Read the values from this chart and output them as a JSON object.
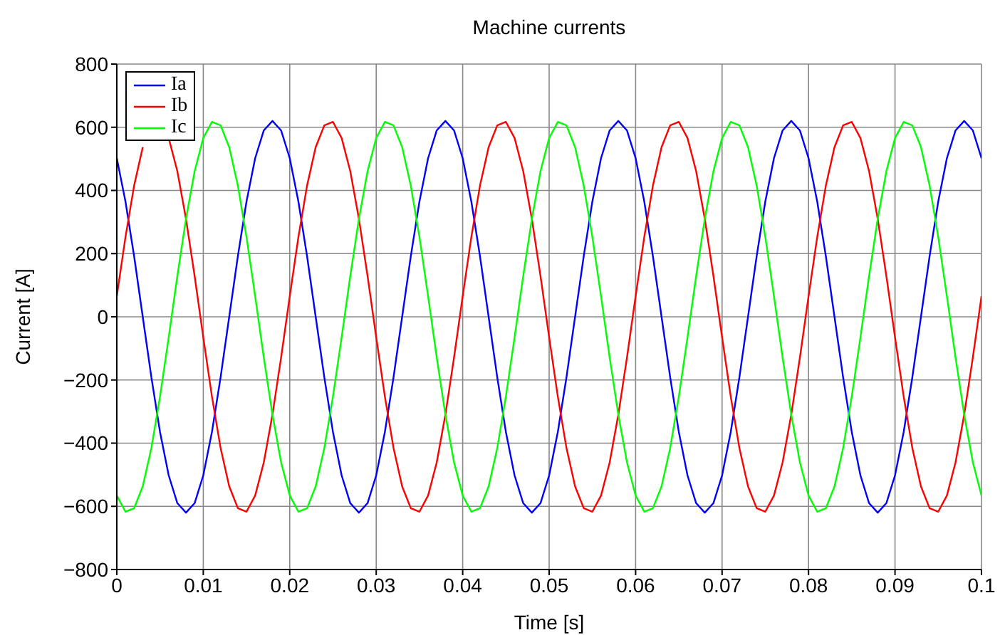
{
  "chart_data": {
    "type": "line",
    "title": "Machine currents",
    "xlabel": "Time [s]",
    "ylabel": "Current [A]",
    "x": [
      0,
      0.001,
      0.002,
      0.003,
      0.004,
      0.005,
      0.006,
      0.007,
      0.008,
      0.009,
      0.01,
      0.011,
      0.012,
      0.013,
      0.014,
      0.015,
      0.016,
      0.017,
      0.018,
      0.019,
      0.02,
      0.021,
      0.022,
      0.023,
      0.024,
      0.025,
      0.026,
      0.027,
      0.028,
      0.029,
      0.03,
      0.031,
      0.032,
      0.033,
      0.034,
      0.035,
      0.036,
      0.037,
      0.038,
      0.039,
      0.04,
      0.041,
      0.042,
      0.043,
      0.044,
      0.045,
      0.046,
      0.047,
      0.048,
      0.049,
      0.05,
      0.051,
      0.052,
      0.053,
      0.054,
      0.055,
      0.056,
      0.057,
      0.058,
      0.059,
      0.06,
      0.061,
      0.062,
      0.063,
      0.064,
      0.065,
      0.066,
      0.067,
      0.068,
      0.069,
      0.07,
      0.071,
      0.072,
      0.073,
      0.074,
      0.075,
      0.076,
      0.077,
      0.078,
      0.079,
      0.08,
      0.081,
      0.082,
      0.083,
      0.084,
      0.085,
      0.086,
      0.087,
      0.088,
      0.089,
      0.09,
      0.091,
      0.092,
      0.093,
      0.094,
      0.095,
      0.096,
      0.097,
      0.098,
      0.099,
      0.1
    ],
    "series": [
      {
        "name": "Ia",
        "color": "#0000ff",
        "values": [
          502,
          365,
          192,
          0,
          -192,
          -365,
          -502,
          -590,
          -620,
          -590,
          -502,
          -365,
          -192,
          0,
          192,
          365,
          502,
          590,
          620,
          590,
          502,
          365,
          192,
          0,
          -192,
          -365,
          -502,
          -590,
          -620,
          -590,
          -502,
          -365,
          -192,
          0,
          192,
          365,
          502,
          590,
          620,
          590,
          502,
          365,
          192,
          0,
          -192,
          -365,
          -502,
          -590,
          -620,
          -590,
          -502,
          -365,
          -192,
          0,
          192,
          365,
          502,
          590,
          620,
          590,
          502,
          365,
          192,
          0,
          -192,
          -365,
          -502,
          -590,
          -620,
          -590,
          -502,
          -365,
          -192,
          0,
          192,
          365,
          502,
          590,
          620,
          590,
          502,
          365,
          192,
          0,
          -192,
          -365,
          -502,
          -590,
          -620,
          -590,
          -502,
          -365,
          -192,
          0,
          192,
          365,
          502,
          590,
          620,
          590,
          502
        ]
      },
      {
        "name": "Ib",
        "color": "#ff0000",
        "values": [
          65,
          252,
          415,
          537,
          null,
          null,
          566,
          461,
          310,
          129,
          -65,
          -252,
          -415,
          -537,
          -606,
          -617,
          -566,
          -461,
          -310,
          -129,
          65,
          252,
          415,
          537,
          606,
          617,
          566,
          461,
          310,
          129,
          -65,
          -252,
          -415,
          -537,
          -606,
          -617,
          -566,
          -461,
          -310,
          -129,
          65,
          252,
          415,
          537,
          606,
          617,
          566,
          461,
          310,
          129,
          -65,
          -252,
          -415,
          -537,
          -606,
          -617,
          -566,
          -461,
          -310,
          -129,
          65,
          252,
          415,
          537,
          606,
          617,
          566,
          461,
          310,
          129,
          -65,
          -252,
          -415,
          -537,
          -606,
          -617,
          -566,
          -461,
          -310,
          -129,
          65,
          252,
          415,
          537,
          606,
          617,
          566,
          461,
          310,
          129,
          -65,
          -252,
          -415,
          -537,
          -606,
          -617,
          -566,
          -461,
          -310,
          -129,
          65
        ]
      },
      {
        "name": "Ic",
        "color": "#00ff00",
        "values": [
          -566,
          -617,
          -606,
          -537,
          -415,
          -252,
          -65,
          129,
          310,
          461,
          566,
          617,
          606,
          537,
          415,
          252,
          65,
          -129,
          -310,
          -461,
          -566,
          -617,
          -606,
          -537,
          -415,
          -252,
          -65,
          129,
          310,
          461,
          566,
          617,
          606,
          537,
          415,
          252,
          65,
          -129,
          -310,
          -461,
          -566,
          -617,
          -606,
          -537,
          -415,
          -252,
          -65,
          129,
          310,
          461,
          566,
          617,
          606,
          537,
          415,
          252,
          65,
          -129,
          -310,
          -461,
          -566,
          -617,
          -606,
          -537,
          -415,
          -252,
          -65,
          129,
          310,
          461,
          566,
          617,
          606,
          537,
          415,
          252,
          65,
          -129,
          -310,
          -461,
          -566,
          -617,
          -606,
          -537,
          -415,
          -252,
          -65,
          129,
          310,
          461,
          566,
          617,
          606,
          537,
          415,
          252,
          65,
          -129,
          -310,
          -461,
          -566
        ]
      }
    ],
    "xlim": [
      0,
      0.1
    ],
    "xticks": [
      0,
      0.01,
      0.02,
      0.03,
      0.04,
      0.05,
      0.06,
      0.07,
      0.08,
      0.09,
      0.1
    ],
    "ylim": [
      -800,
      800
    ],
    "yticks": [
      {
        "value": -800,
        "label": "−800"
      },
      {
        "value": -600,
        "label": "−600"
      },
      {
        "value": -400,
        "label": "−400"
      },
      {
        "value": -200,
        "label": "−200"
      },
      0,
      200,
      400,
      600,
      800
    ],
    "grid": true,
    "legend": "top left"
  }
}
